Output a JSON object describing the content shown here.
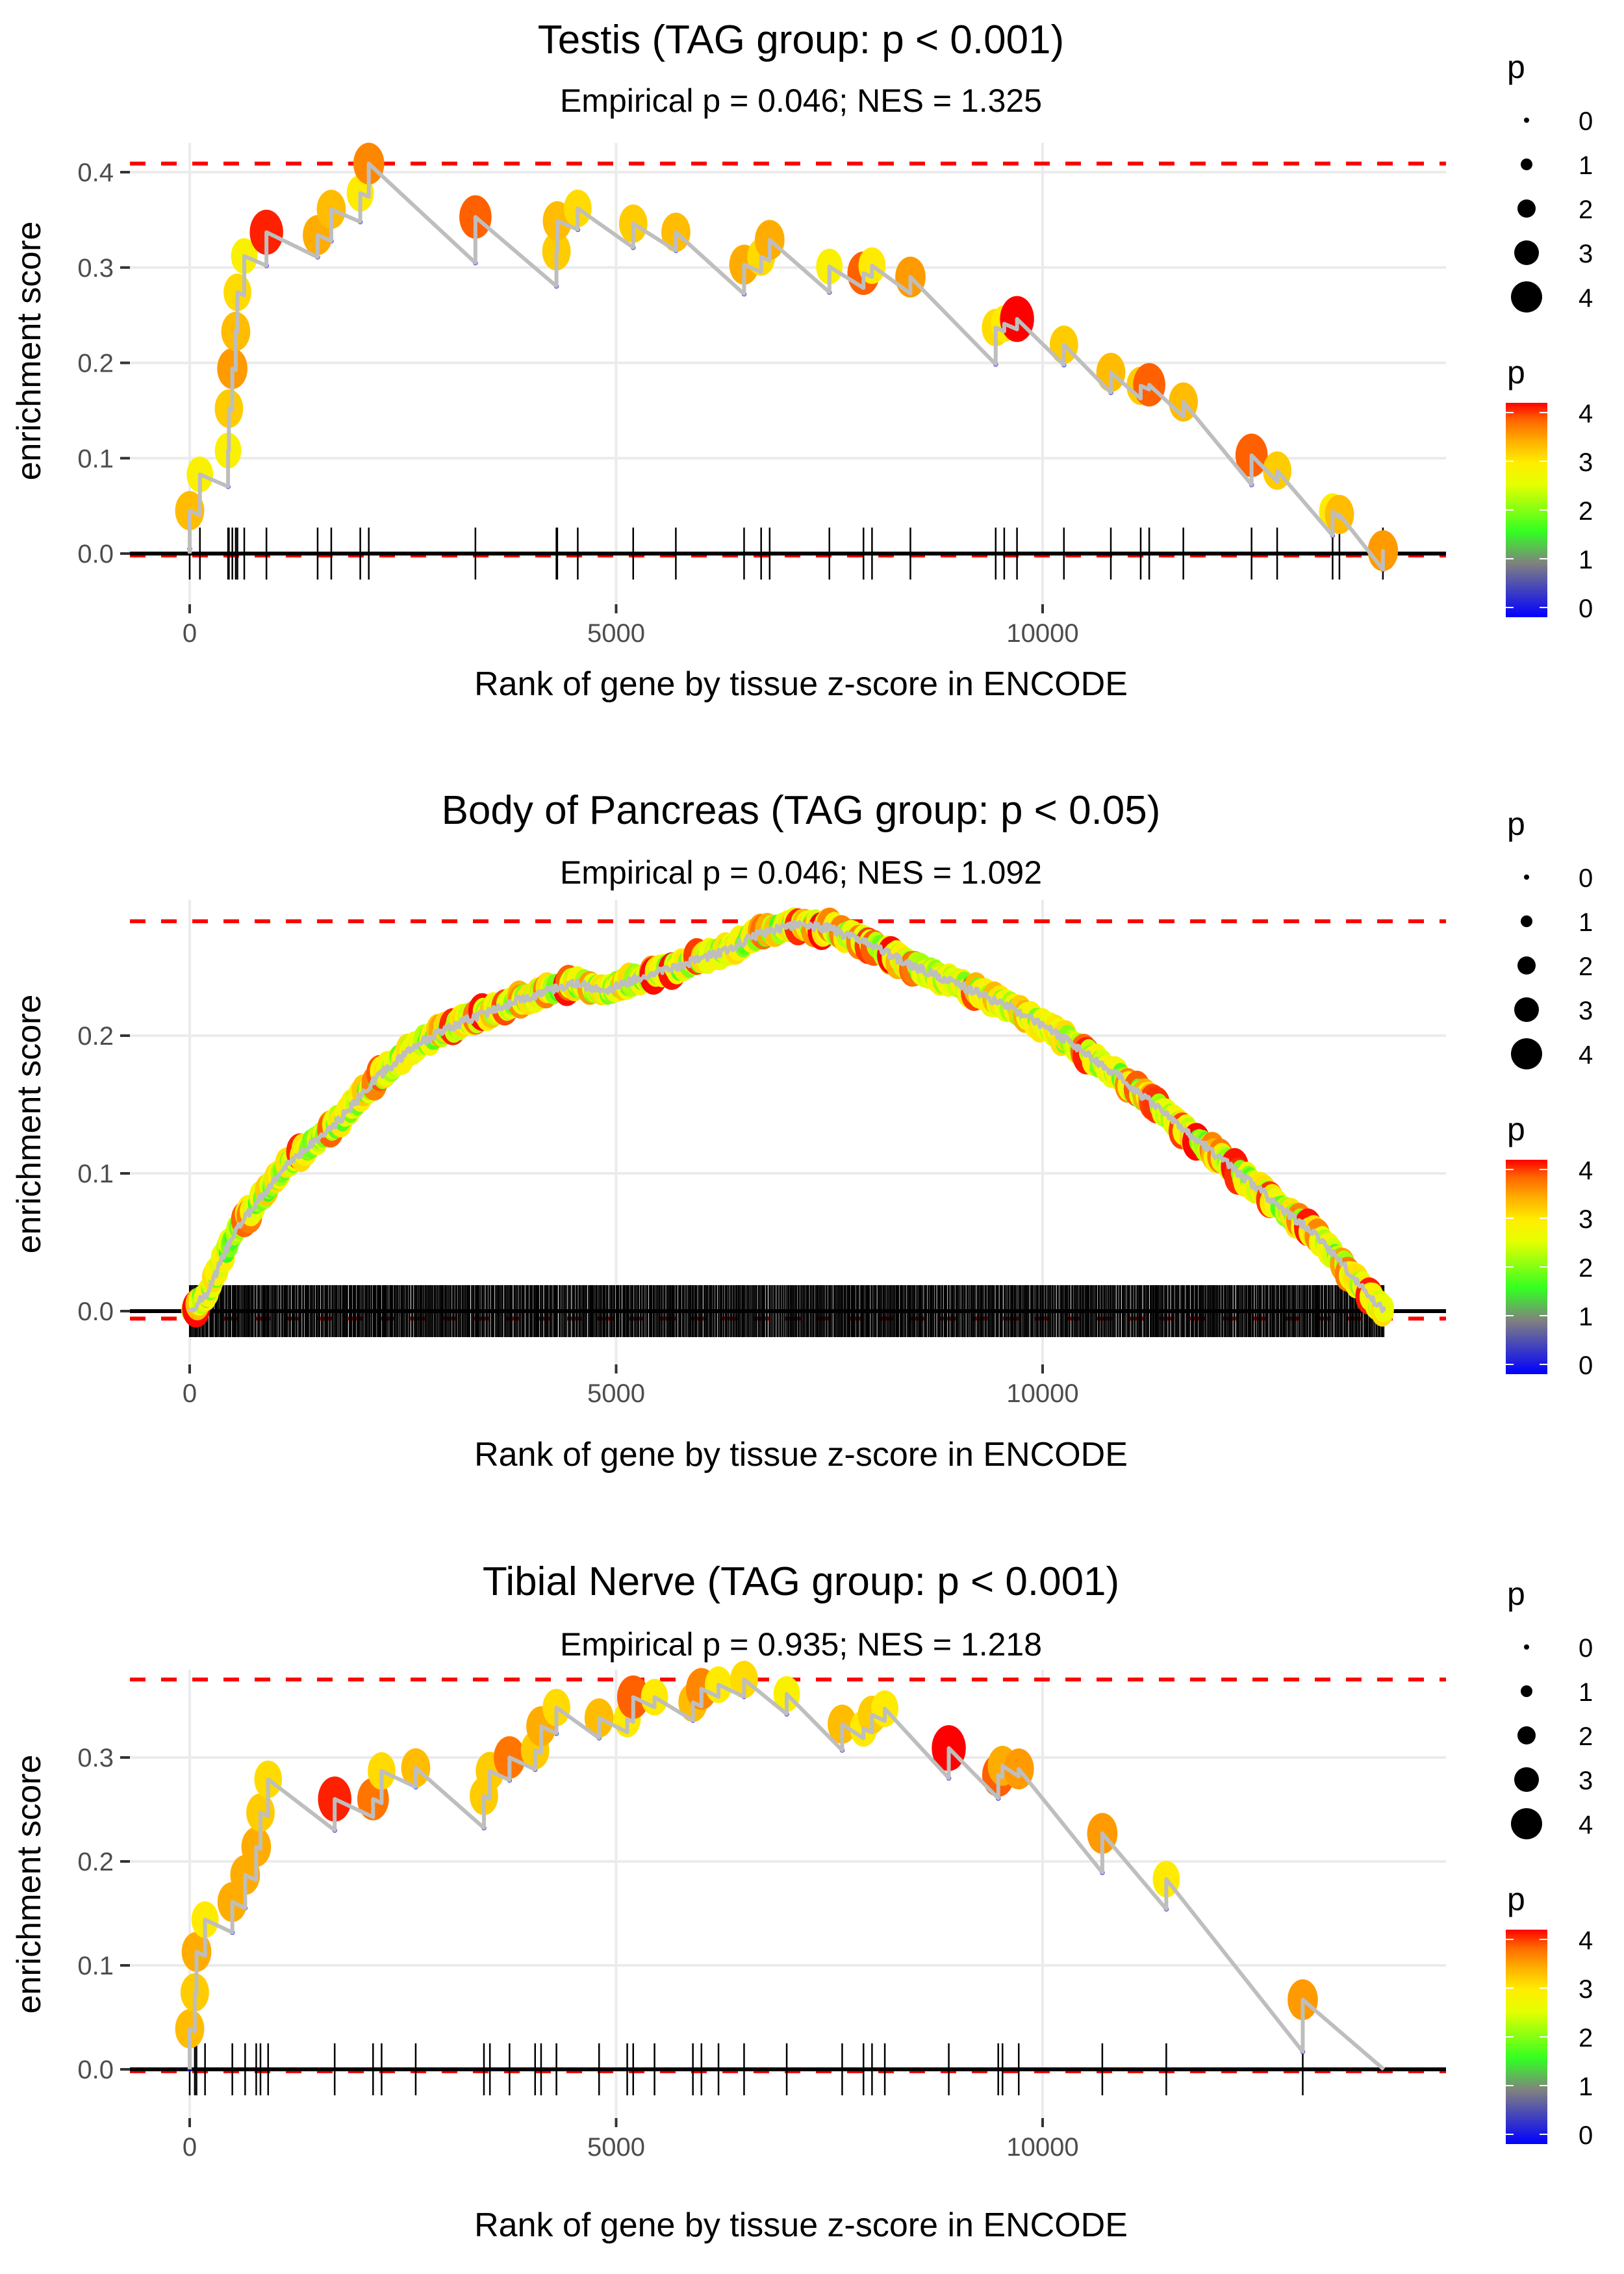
{
  "chart_data": [
    {
      "type": "scatter",
      "title": "Testis (TAG group: p < 0.001)",
      "subtitle": "Empirical p = 0.046; NES = 1.325",
      "xlabel": "Rank of gene by tissue z-score in ENCODE",
      "ylabel": "enrichment score",
      "xlim": [
        -800,
        14700
      ],
      "ylim": [
        -0.02,
        0.425
      ],
      "x_ticks": [
        0,
        5000,
        10000
      ],
      "x_tick_labels": [
        "0",
        "5000",
        "10000"
      ],
      "y_ticks": [
        0.0,
        0.1,
        0.2,
        0.3,
        0.4
      ],
      "y_tick_labels": [
        "0.0",
        "0.1",
        "0.2",
        "0.3",
        "0.4"
      ],
      "grid": true,
      "max_es_line": 0.409,
      "min_es_line": 0.0,
      "end_rank": 13990,
      "points": [
        {
          "rank": 0,
          "es": 0.045,
          "p": 3.2
        },
        {
          "rank": 120,
          "es": 0.083,
          "p": 2.8
        },
        {
          "rank": 450,
          "es": 0.108,
          "p": 2.8
        },
        {
          "rank": 460,
          "es": 0.152,
          "p": 3.1
        },
        {
          "rank": 500,
          "es": 0.194,
          "p": 3.4
        },
        {
          "rank": 540,
          "es": 0.233,
          "p": 3.2
        },
        {
          "rank": 560,
          "es": 0.274,
          "p": 3.0
        },
        {
          "rank": 640,
          "es": 0.312,
          "p": 2.8
        },
        {
          "rank": 900,
          "es": 0.337,
          "p": 3.9
        },
        {
          "rank": 1500,
          "es": 0.334,
          "p": 3.3
        },
        {
          "rank": 1660,
          "es": 0.361,
          "p": 3.2
        },
        {
          "rank": 2000,
          "es": 0.378,
          "p": 2.9
        },
        {
          "rank": 2100,
          "es": 0.409,
          "p": 3.5
        },
        {
          "rank": 3350,
          "es": 0.353,
          "p": 3.7
        },
        {
          "rank": 4300,
          "es": 0.317,
          "p": 3.1
        },
        {
          "rank": 4310,
          "es": 0.349,
          "p": 3.2
        },
        {
          "rank": 4550,
          "es": 0.362,
          "p": 3.0
        },
        {
          "rank": 5200,
          "es": 0.346,
          "p": 3.1
        },
        {
          "rank": 5700,
          "es": 0.337,
          "p": 3.2
        },
        {
          "rank": 6500,
          "es": 0.303,
          "p": 3.3
        },
        {
          "rank": 6700,
          "es": 0.311,
          "p": 3.0
        },
        {
          "rank": 6800,
          "es": 0.329,
          "p": 3.3
        },
        {
          "rank": 7500,
          "es": 0.301,
          "p": 2.8
        },
        {
          "rank": 7900,
          "es": 0.294,
          "p": 3.7
        },
        {
          "rank": 8000,
          "es": 0.302,
          "p": 2.9
        },
        {
          "rank": 8450,
          "es": 0.29,
          "p": 3.4
        },
        {
          "rank": 9450,
          "es": 0.237,
          "p": 3.0
        },
        {
          "rank": 9550,
          "es": 0.241,
          "p": 2.9
        },
        {
          "rank": 9700,
          "es": 0.246,
          "p": 4.0
        },
        {
          "rank": 10250,
          "es": 0.219,
          "p": 3.1
        },
        {
          "rank": 10800,
          "es": 0.19,
          "p": 3.2
        },
        {
          "rank": 11150,
          "es": 0.176,
          "p": 3.1
        },
        {
          "rank": 11250,
          "es": 0.177,
          "p": 3.7
        },
        {
          "rank": 11650,
          "es": 0.159,
          "p": 3.2
        },
        {
          "rank": 12450,
          "es": 0.103,
          "p": 3.7
        },
        {
          "rank": 12750,
          "es": 0.087,
          "p": 3.1
        },
        {
          "rank": 13400,
          "es": 0.044,
          "p": 2.9
        },
        {
          "rank": 13480,
          "es": 0.041,
          "p": 3.2
        },
        {
          "rank": 13990,
          "es": 0.003,
          "p": 3.4
        }
      ],
      "size_legend": {
        "title": "p",
        "values": [
          0,
          1,
          2,
          3,
          4
        ]
      },
      "color_legend": {
        "title": "p",
        "min": 0,
        "max": 4,
        "labels": [
          "4",
          "3",
          "2",
          "1",
          "0"
        ]
      }
    },
    {
      "type": "scatter",
      "title": "Body of Pancreas (TAG group: p < 0.05)",
      "subtitle": "Empirical p = 0.046; NES = 1.092",
      "xlabel": "Rank of gene by tissue z-score in ENCODE",
      "ylabel": "enrichment score",
      "xlim": [
        -800,
        14700
      ],
      "ylim": [
        -0.015,
        0.29
      ],
      "x_ticks": [
        0,
        5000,
        10000
      ],
      "x_tick_labels": [
        "0",
        "5000",
        "10000"
      ],
      "y_ticks": [
        0.0,
        0.1,
        0.2
      ],
      "y_tick_labels": [
        "0.0",
        "0.1",
        "0.2"
      ],
      "grid": true,
      "max_es_line": 0.283,
      "min_es_line": -0.004,
      "end_rank": 14000,
      "dense_hits": {
        "count": 900,
        "start_rank": 0,
        "end_rank": 14000
      },
      "curve_profile": [
        {
          "rank": 0,
          "es": 0.0
        },
        {
          "rank": 200,
          "es": 0.012
        },
        {
          "rank": 500,
          "es": 0.055
        },
        {
          "rank": 800,
          "es": 0.08
        },
        {
          "rank": 1200,
          "es": 0.11
        },
        {
          "rank": 1700,
          "es": 0.135
        },
        {
          "rank": 2200,
          "es": 0.17
        },
        {
          "rank": 2700,
          "es": 0.195
        },
        {
          "rank": 3200,
          "es": 0.21
        },
        {
          "rank": 3800,
          "es": 0.225
        },
        {
          "rank": 4500,
          "es": 0.238
        },
        {
          "rank": 4900,
          "es": 0.233
        },
        {
          "rank": 5300,
          "es": 0.243
        },
        {
          "rank": 5800,
          "es": 0.252
        },
        {
          "rank": 6300,
          "es": 0.262
        },
        {
          "rank": 6700,
          "es": 0.275
        },
        {
          "rank": 7100,
          "es": 0.281
        },
        {
          "rank": 7500,
          "es": 0.278
        },
        {
          "rank": 8000,
          "es": 0.265
        },
        {
          "rank": 8500,
          "es": 0.25
        },
        {
          "rank": 9200,
          "es": 0.232
        },
        {
          "rank": 9800,
          "es": 0.215
        },
        {
          "rank": 10300,
          "es": 0.196
        },
        {
          "rank": 10900,
          "es": 0.17
        },
        {
          "rank": 11500,
          "es": 0.14
        },
        {
          "rank": 12100,
          "es": 0.11
        },
        {
          "rank": 12700,
          "es": 0.08
        },
        {
          "rank": 13300,
          "es": 0.05
        },
        {
          "rank": 13700,
          "es": 0.02
        },
        {
          "rank": 14000,
          "es": 0.0
        }
      ],
      "size_legend": {
        "title": "p",
        "values": [
          0,
          1,
          2,
          3,
          4
        ]
      },
      "color_legend": {
        "title": "p",
        "min": 0,
        "max": 4,
        "labels": [
          "4",
          "3",
          "2",
          "1",
          "0"
        ]
      }
    },
    {
      "type": "scatter",
      "title": "Tibial Nerve (TAG group: p < 0.001)",
      "subtitle": "Empirical p = 0.935; NES = 1.218",
      "xlabel": "Rank of gene by tissue z-score in ENCODE",
      "ylabel": "enrichment score",
      "xlim": [
        -800,
        14700
      ],
      "ylim": [
        -0.02,
        0.39
      ],
      "x_ticks": [
        0,
        5000,
        10000
      ],
      "x_tick_labels": [
        "0",
        "5000",
        "10000"
      ],
      "y_ticks": [
        0.0,
        0.1,
        0.2,
        0.3
      ],
      "y_tick_labels": [
        "0.0",
        "0.1",
        "0.2",
        "0.3"
      ],
      "grid": true,
      "max_es_line": 0.375,
      "min_es_line": 0.0,
      "end_rank": 14000,
      "points": [
        {
          "rank": 0,
          "es": 0.039,
          "p": 3.2
        },
        {
          "rank": 60,
          "es": 0.074,
          "p": 3.1
        },
        {
          "rank": 80,
          "es": 0.113,
          "p": 3.3
        },
        {
          "rank": 180,
          "es": 0.144,
          "p": 2.9
        },
        {
          "rank": 500,
          "es": 0.161,
          "p": 3.3
        },
        {
          "rank": 650,
          "es": 0.187,
          "p": 3.3
        },
        {
          "rank": 780,
          "es": 0.214,
          "p": 3.3
        },
        {
          "rank": 830,
          "es": 0.247,
          "p": 3.1
        },
        {
          "rank": 920,
          "es": 0.279,
          "p": 3.0
        },
        {
          "rank": 1700,
          "es": 0.26,
          "p": 3.9
        },
        {
          "rank": 2150,
          "es": 0.26,
          "p": 3.6
        },
        {
          "rank": 2250,
          "es": 0.287,
          "p": 3.0
        },
        {
          "rank": 2650,
          "es": 0.29,
          "p": 3.2
        },
        {
          "rank": 3450,
          "es": 0.263,
          "p": 3.1
        },
        {
          "rank": 3520,
          "es": 0.287,
          "p": 3.1
        },
        {
          "rank": 3750,
          "es": 0.3,
          "p": 3.6
        },
        {
          "rank": 4050,
          "es": 0.307,
          "p": 3.1
        },
        {
          "rank": 4120,
          "es": 0.33,
          "p": 3.3
        },
        {
          "rank": 4300,
          "es": 0.348,
          "p": 3.0
        },
        {
          "rank": 4800,
          "es": 0.338,
          "p": 3.2
        },
        {
          "rank": 5130,
          "es": 0.337,
          "p": 2.9
        },
        {
          "rank": 5200,
          "es": 0.358,
          "p": 3.7
        },
        {
          "rank": 5450,
          "es": 0.358,
          "p": 2.9
        },
        {
          "rank": 5900,
          "es": 0.353,
          "p": 3.2
        },
        {
          "rank": 6000,
          "es": 0.366,
          "p": 3.5
        },
        {
          "rank": 6200,
          "es": 0.37,
          "p": 2.9
        },
        {
          "rank": 6500,
          "es": 0.375,
          "p": 3.0
        },
        {
          "rank": 7000,
          "es": 0.361,
          "p": 2.8
        },
        {
          "rank": 7650,
          "es": 0.332,
          "p": 3.2
        },
        {
          "rank": 7900,
          "es": 0.328,
          "p": 2.9
        },
        {
          "rank": 8000,
          "es": 0.341,
          "p": 3.1
        },
        {
          "rank": 8150,
          "es": 0.347,
          "p": 2.9
        },
        {
          "rank": 8900,
          "es": 0.309,
          "p": 4.0
        },
        {
          "rank": 9480,
          "es": 0.283,
          "p": 3.7
        },
        {
          "rank": 9530,
          "es": 0.292,
          "p": 3.3
        },
        {
          "rank": 9720,
          "es": 0.289,
          "p": 3.4
        },
        {
          "rank": 10700,
          "es": 0.227,
          "p": 3.4
        },
        {
          "rank": 11450,
          "es": 0.183,
          "p": 2.9
        },
        {
          "rank": 13050,
          "es": 0.067,
          "p": 3.4
        }
      ],
      "size_legend": {
        "title": "p",
        "values": [
          0,
          1,
          2,
          3,
          4
        ]
      },
      "color_legend": {
        "title": "p",
        "min": 0,
        "max": 4,
        "labels": [
          "4",
          "3",
          "2",
          "1",
          "0"
        ]
      }
    }
  ]
}
